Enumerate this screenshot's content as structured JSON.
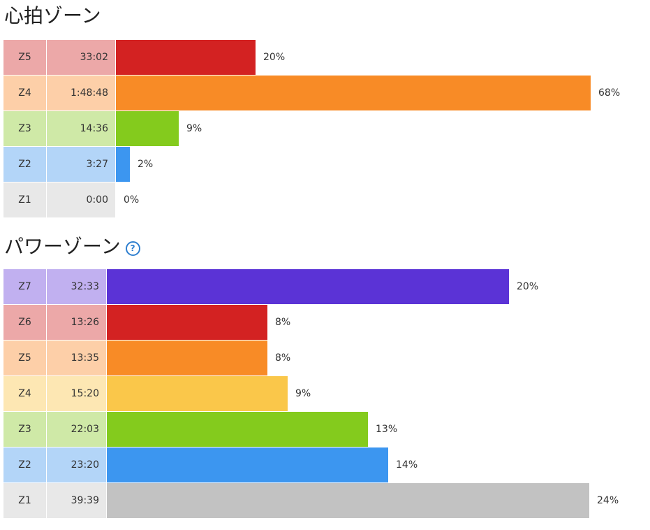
{
  "heart_rate": {
    "title": "心拍ゾーン",
    "colors": [
      "#d32222",
      "#f88b26",
      "#84cb1d",
      "#3c96f0",
      "#e8e8e8"
    ],
    "light_colors": [
      "#eca8a8",
      "#fdcfa8",
      "#cfe9a7",
      "#b3d5f8",
      "#e8e8e8"
    ]
  },
  "power": {
    "title": "パワーゾーン",
    "help_icon": "question-circle-icon",
    "colors": [
      "#5b33d6",
      "#d32222",
      "#f88b26",
      "#fac74a",
      "#84cb1d",
      "#3c96f0",
      "#c2c2c2"
    ],
    "light_colors": [
      "#c1b0f0",
      "#eca8a8",
      "#fdcfa8",
      "#fde7b3",
      "#cfe9a7",
      "#b3d5f8",
      "#e8e8e8"
    ]
  },
  "chart_data": [
    {
      "type": "bar",
      "title": "心拍ゾーン",
      "categories": [
        "Z5",
        "Z4",
        "Z3",
        "Z2",
        "Z1"
      ],
      "times": [
        "33:02",
        "1:48:48",
        "14:36",
        "3:27",
        "0:00"
      ],
      "values": [
        20,
        68,
        9,
        2,
        0
      ],
      "labels": [
        "20%",
        "68%",
        "9%",
        "2%",
        "0%"
      ]
    },
    {
      "type": "bar",
      "title": "パワーゾーン",
      "categories": [
        "Z7",
        "Z6",
        "Z5",
        "Z4",
        "Z3",
        "Z2",
        "Z1"
      ],
      "times": [
        "32:33",
        "13:26",
        "13:35",
        "15:20",
        "22:03",
        "23:20",
        "39:39"
      ],
      "values": [
        20,
        8,
        8,
        9,
        13,
        14,
        24
      ],
      "labels": [
        "20%",
        "8%",
        "8%",
        "9%",
        "13%",
        "14%",
        "24%"
      ]
    }
  ]
}
